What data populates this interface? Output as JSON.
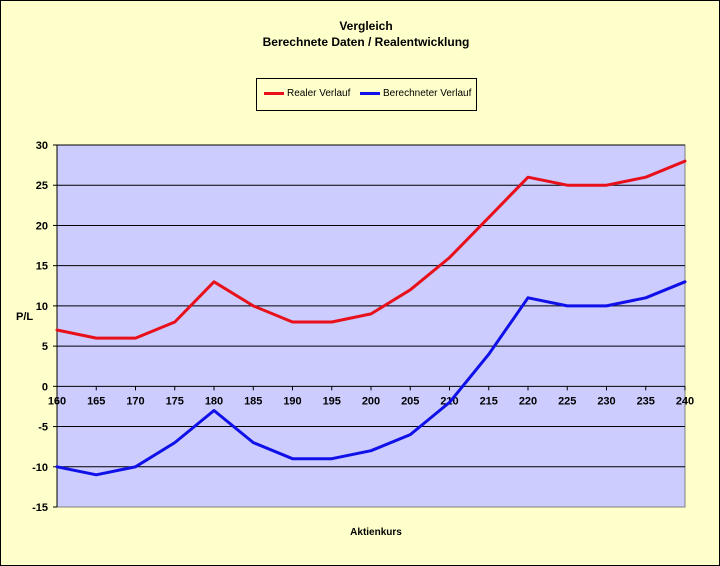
{
  "chart_data": {
    "type": "line",
    "title": "Vergleich",
    "subtitle": "Berechnete Daten / Realentwicklung",
    "xlabel": "Aktienkurs",
    "ylabel": "P/L",
    "x": [
      160,
      165,
      170,
      175,
      180,
      185,
      190,
      195,
      200,
      205,
      210,
      215,
      220,
      225,
      230,
      235,
      240
    ],
    "xlim": [
      160,
      240
    ],
    "ylim": [
      -15,
      30
    ],
    "yticks": [
      30,
      25,
      20,
      15,
      10,
      5,
      0,
      -5,
      -10,
      -15
    ],
    "grid": "horizontal",
    "legend_position": "top",
    "plot_background": "#CCCCFF",
    "chart_background": "#FFFFCC",
    "series": [
      {
        "name": "Realer Verlauf",
        "color": "#E8101A",
        "values": [
          7,
          6,
          6,
          8,
          13,
          10,
          8,
          8,
          9,
          12,
          16,
          21,
          26,
          25,
          25,
          26,
          28
        ]
      },
      {
        "name": "Berechneter Verlauf",
        "color": "#1010E8",
        "values": [
          -10,
          -11,
          -10,
          -7,
          -3,
          -7,
          -9,
          -9,
          -8,
          -6,
          -2,
          4,
          11,
          10,
          10,
          11,
          13
        ]
      }
    ]
  }
}
